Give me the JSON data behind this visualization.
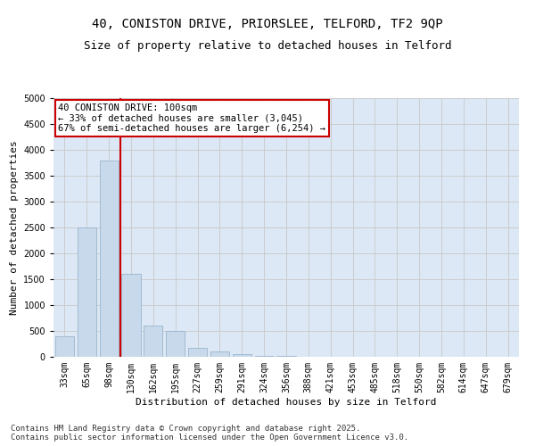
{
  "title_line1": "40, CONISTON DRIVE, PRIORSLEE, TELFORD, TF2 9QP",
  "title_line2": "Size of property relative to detached houses in Telford",
  "xlabel": "Distribution of detached houses by size in Telford",
  "ylabel": "Number of detached properties",
  "bar_color": "#c8d9ec",
  "bar_edge_color": "#9bb5cc",
  "grid_color": "#c8c8c8",
  "bg_color": "#dce8f5",
  "categories": [
    "33sqm",
    "65sqm",
    "98sqm",
    "130sqm",
    "162sqm",
    "195sqm",
    "227sqm",
    "259sqm",
    "291sqm",
    "324sqm",
    "356sqm",
    "388sqm",
    "421sqm",
    "453sqm",
    "485sqm",
    "518sqm",
    "550sqm",
    "582sqm",
    "614sqm",
    "647sqm",
    "679sqm"
  ],
  "values": [
    400,
    2500,
    3800,
    1600,
    600,
    500,
    175,
    100,
    50,
    20,
    10,
    5,
    3,
    2,
    1,
    1,
    1,
    0,
    0,
    0,
    0
  ],
  "vline_color": "#cc0000",
  "annotation_text": "40 CONISTON DRIVE: 100sqm\n← 33% of detached houses are smaller (3,045)\n67% of semi-detached houses are larger (6,254) →",
  "annotation_box_color": "#ffffff",
  "annotation_box_edge": "#cc0000",
  "ylim": [
    0,
    5000
  ],
  "yticks": [
    0,
    500,
    1000,
    1500,
    2000,
    2500,
    3000,
    3500,
    4000,
    4500,
    5000
  ],
  "footer_line1": "Contains HM Land Registry data © Crown copyright and database right 2025.",
  "footer_line2": "Contains public sector information licensed under the Open Government Licence v3.0.",
  "title_fontsize": 10,
  "subtitle_fontsize": 9,
  "axis_label_fontsize": 8,
  "tick_fontsize": 7,
  "annotation_fontsize": 7.5,
  "footer_fontsize": 6.5
}
